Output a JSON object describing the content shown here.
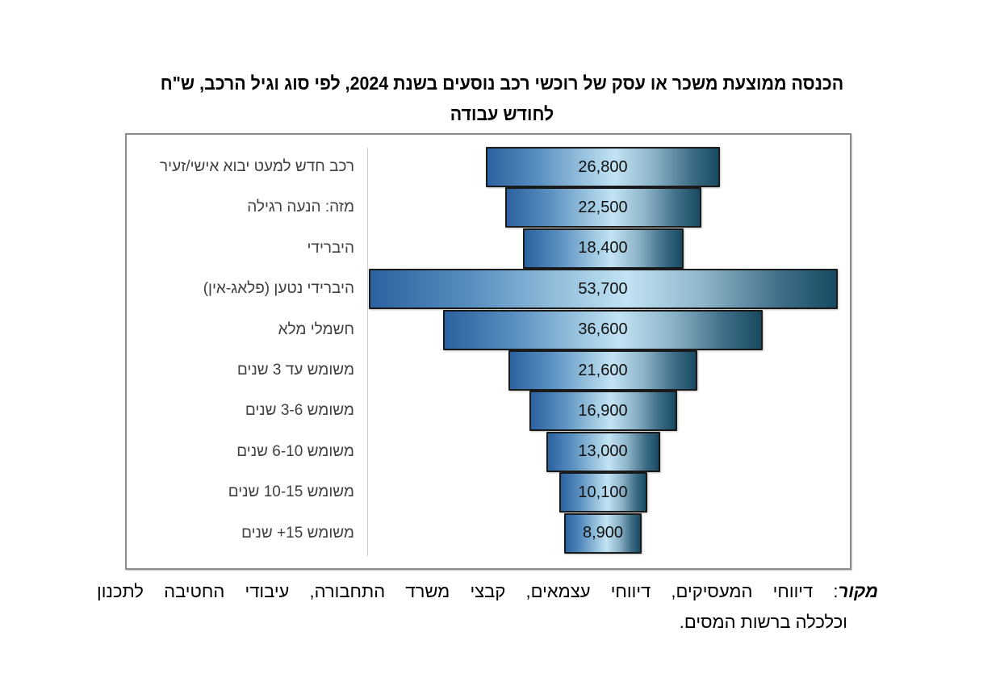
{
  "title": {
    "line1": "הכנסה ממוצעת משכר או עסק של רוכשי רכב נוסעים בשנת 2024, לפי סוג וגיל הרכב, ש\"ח",
    "line2": "לחודש עבודה"
  },
  "chart_data": {
    "type": "bar",
    "orientation": "horizontal",
    "style": "centered funnel bars with gradient fill",
    "title": "הכנסה ממוצעת משכר או עסק של רוכשי רכב נוסעים בשנת 2024, לפי סוג וגיל הרכב, ש\"ח לחודש עבודה",
    "xlabel": "",
    "ylabel": "",
    "categories": [
      "רכב חדש למעט יבוא אישי/זעיר",
      "מזה: הנעה רגילה",
      "היברידי",
      "היברידי נטען (פלאג-אין)",
      "חשמלי מלא",
      "משומש עד 3 שנים",
      "משומש 3-6 שנים",
      "משומש 6-10 שנים",
      "משומש 10-15 שנים",
      "משומש 15+ שנים"
    ],
    "values": [
      26800,
      22500,
      18400,
      53700,
      36600,
      21600,
      16900,
      13000,
      10100,
      8900
    ],
    "value_labels": [
      "26,800",
      "22,500",
      "18,400",
      "53,700",
      "36,600",
      "21,600",
      "16,900",
      "13,000",
      "10,100",
      "8,900"
    ],
    "grid": false,
    "legend": "none",
    "colors": {
      "gradient_left": "#2b62a0",
      "gradient_center": "#c2e3f3",
      "gradient_right": "#174a62",
      "border": "#1a1a1a"
    }
  },
  "source": {
    "label": "מקור",
    "line1": "דיווחי המעסיקים, דיווחי עצמאים, קבצי משרד התחבורה, עיבודי החטיבה לתכנון",
    "line2": "וכלכלה ברשות המסים."
  }
}
